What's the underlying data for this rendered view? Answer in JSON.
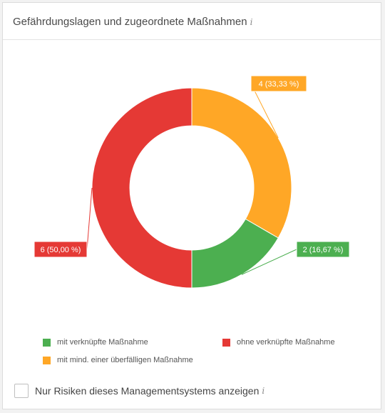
{
  "header": {
    "title": "Gefährdungslagen und zugeordnete Maßnahmen",
    "info_glyph": "i"
  },
  "colors": {
    "green": "#4caf50",
    "orange": "#ffa726",
    "red": "#e53935"
  },
  "chart_data": {
    "type": "pie",
    "variant": "donut",
    "slices": [
      {
        "name": "mit mind. einer überfälligen Maßnahme",
        "value": 4,
        "label": "4 (33,33 %)",
        "color": "#ffa726"
      },
      {
        "name": "mit verknüpfte Maßnahme",
        "value": 2,
        "label": "2 (16,67 %)",
        "color": "#4caf50"
      },
      {
        "name": "ohne verknüpfte Maßnahme",
        "value": 6,
        "label": "6 (50,00 %)",
        "color": "#e53935"
      }
    ],
    "legend": {
      "placement": "bottom",
      "items": [
        {
          "label": "mit verknüpfte Maßnahme",
          "color": "#4caf50"
        },
        {
          "label": "ohne verknüpfte Maßnahme",
          "color": "#e53935"
        },
        {
          "label": "mit mind. einer überfälligen Maßnahme",
          "color": "#ffa726"
        }
      ]
    }
  },
  "filter": {
    "checkbox_label": "Nur Risiken dieses Managementsystems anzeigen",
    "checked": false,
    "info_glyph": "i"
  }
}
